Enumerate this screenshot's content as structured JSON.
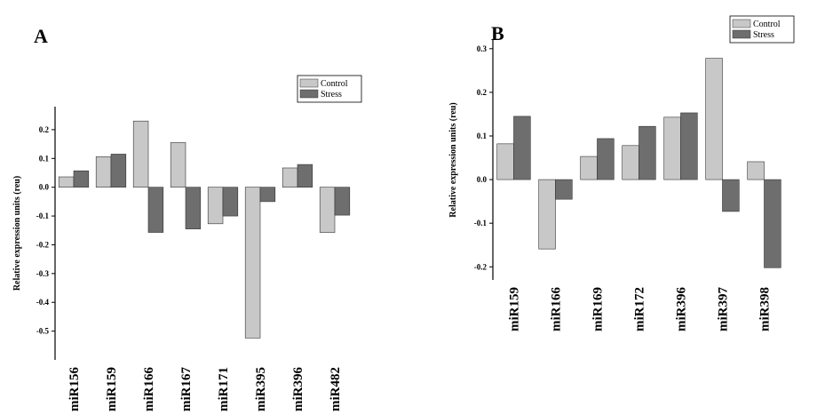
{
  "chart_data": [
    {
      "type": "bar",
      "title": "A",
      "y_label": "Relative expression units (reu)",
      "categories": [
        "miR156",
        "miR159",
        "miR166",
        "miR167",
        "miR171",
        "miR395",
        "miR396",
        "miR482"
      ],
      "series": [
        {
          "name": "Control",
          "color": "#c8c8c8",
          "values": [
            0.036,
            0.106,
            0.23,
            0.155,
            -0.127,
            -0.524,
            0.067,
            -0.157
          ]
        },
        {
          "name": "Stress",
          "color": "#6e6e6e",
          "values": [
            0.057,
            0.115,
            -0.157,
            -0.145,
            -0.1,
            -0.05,
            0.079,
            -0.097
          ]
        }
      ],
      "ylim": [
        -0.6,
        0.28
      ],
      "yticks": [
        -0.5,
        -0.4,
        -0.3,
        -0.2,
        -0.1,
        {
          "value": 0,
          "label": "0.0"
        },
        0.1,
        0.2
      ],
      "legend": "upper right"
    },
    {
      "type": "bar",
      "title": "B",
      "y_label": "Relative expression units (reu)",
      "categories": [
        "miR159",
        "miR166",
        "miR169",
        "miR172",
        "miR396",
        "miR397",
        "miR398"
      ],
      "series": [
        {
          "name": "Control",
          "color": "#c8c8c8",
          "values": [
            0.082,
            -0.159,
            0.053,
            0.078,
            0.143,
            0.278,
            0.041
          ]
        },
        {
          "name": "Stress",
          "color": "#6e6e6e",
          "values": [
            0.145,
            -0.045,
            0.094,
            0.122,
            0.153,
            -0.073,
            -0.202
          ]
        }
      ],
      "ylim": [
        -0.23,
        0.32
      ],
      "yticks": [
        -0.2,
        -0.1,
        {
          "value": 0,
          "label": "0.0"
        },
        0.1,
        0.2,
        0.3
      ],
      "legend": "upper right"
    }
  ]
}
